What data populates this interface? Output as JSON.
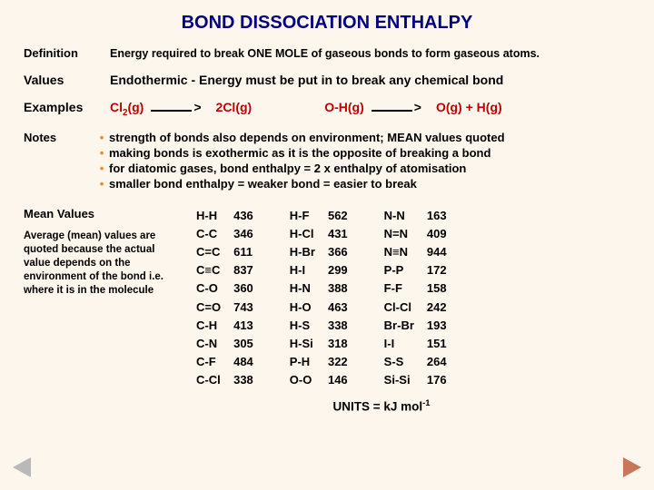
{
  "title": "BOND DISSOCIATION ENTHALPY",
  "rows": {
    "definition": {
      "label": "Definition",
      "text": "Energy required to break ONE MOLE of gaseous bonds to form gaseous atoms."
    },
    "values": {
      "label": "Values",
      "text": "Endothermic -  Energy must be put in to break any chemical bond"
    },
    "examples": {
      "label": "Examples",
      "eq1_lhs": "Cl",
      "eq1_lhs_sub": "2",
      "eq1_lhs2": "(g)",
      "eq1_rhs": "2Cl(g)",
      "eq2_lhs": "O-H(g)",
      "eq2_rhs1": "O",
      "eq2_rhs1_tail": "(g)",
      "eq2_rhs2": " + H(g)"
    },
    "notes": {
      "label": "Notes",
      "bullets": [
        "strength of bonds also depends on environment; MEAN values quoted",
        "making bonds is exothermic as it is the opposite of breaking a bond",
        "for diatomic gases, bond enthalpy =  2 x enthalpy of atomisation",
        "smaller bond enthalpy =  weaker bond = easier to break"
      ]
    }
  },
  "mean": {
    "title": "Mean Values",
    "desc": "Average (mean) values are quoted because the actual value depends on the environment of the bond  i.e. where it is in the molecule"
  },
  "col1": {
    "bonds": [
      "H-H",
      "C-C",
      "C=C",
      "C≡C",
      "C-O",
      "C=O",
      "C-H",
      "C-N",
      "C-F",
      "C-Cl"
    ],
    "vals": [
      "436",
      "346",
      "611",
      "837",
      "360",
      "743",
      "413",
      "305",
      "484",
      "338"
    ]
  },
  "col2": {
    "bonds": [
      "H-F",
      "H-Cl",
      "H-Br",
      "H-I",
      "H-N",
      "H-O",
      "H-S",
      "H-Si",
      "P-H",
      "O-O"
    ],
    "vals": [
      "562",
      "431",
      "366",
      "299",
      "388",
      "463",
      "338",
      "318",
      "322",
      "146"
    ]
  },
  "col3": {
    "bonds": [
      "N-N",
      "N=N",
      "N≡N",
      "P-P",
      "F-F",
      "Cl-Cl",
      "Br-Br",
      "I-I",
      "S-S",
      "Si-Si"
    ],
    "vals": [
      "163",
      "409",
      "944",
      "172",
      "158",
      "242",
      "193",
      "151",
      "264",
      "176"
    ]
  },
  "units_prefix": "UNITS = kJ mol",
  "units_sup": "-1",
  "colors": {
    "title": "#000080",
    "equation": "#c00000",
    "bullet": "#e0902a",
    "nav_left": "#b9b9b9",
    "nav_right": "#c87858",
    "bg": "#fdf6ed"
  }
}
